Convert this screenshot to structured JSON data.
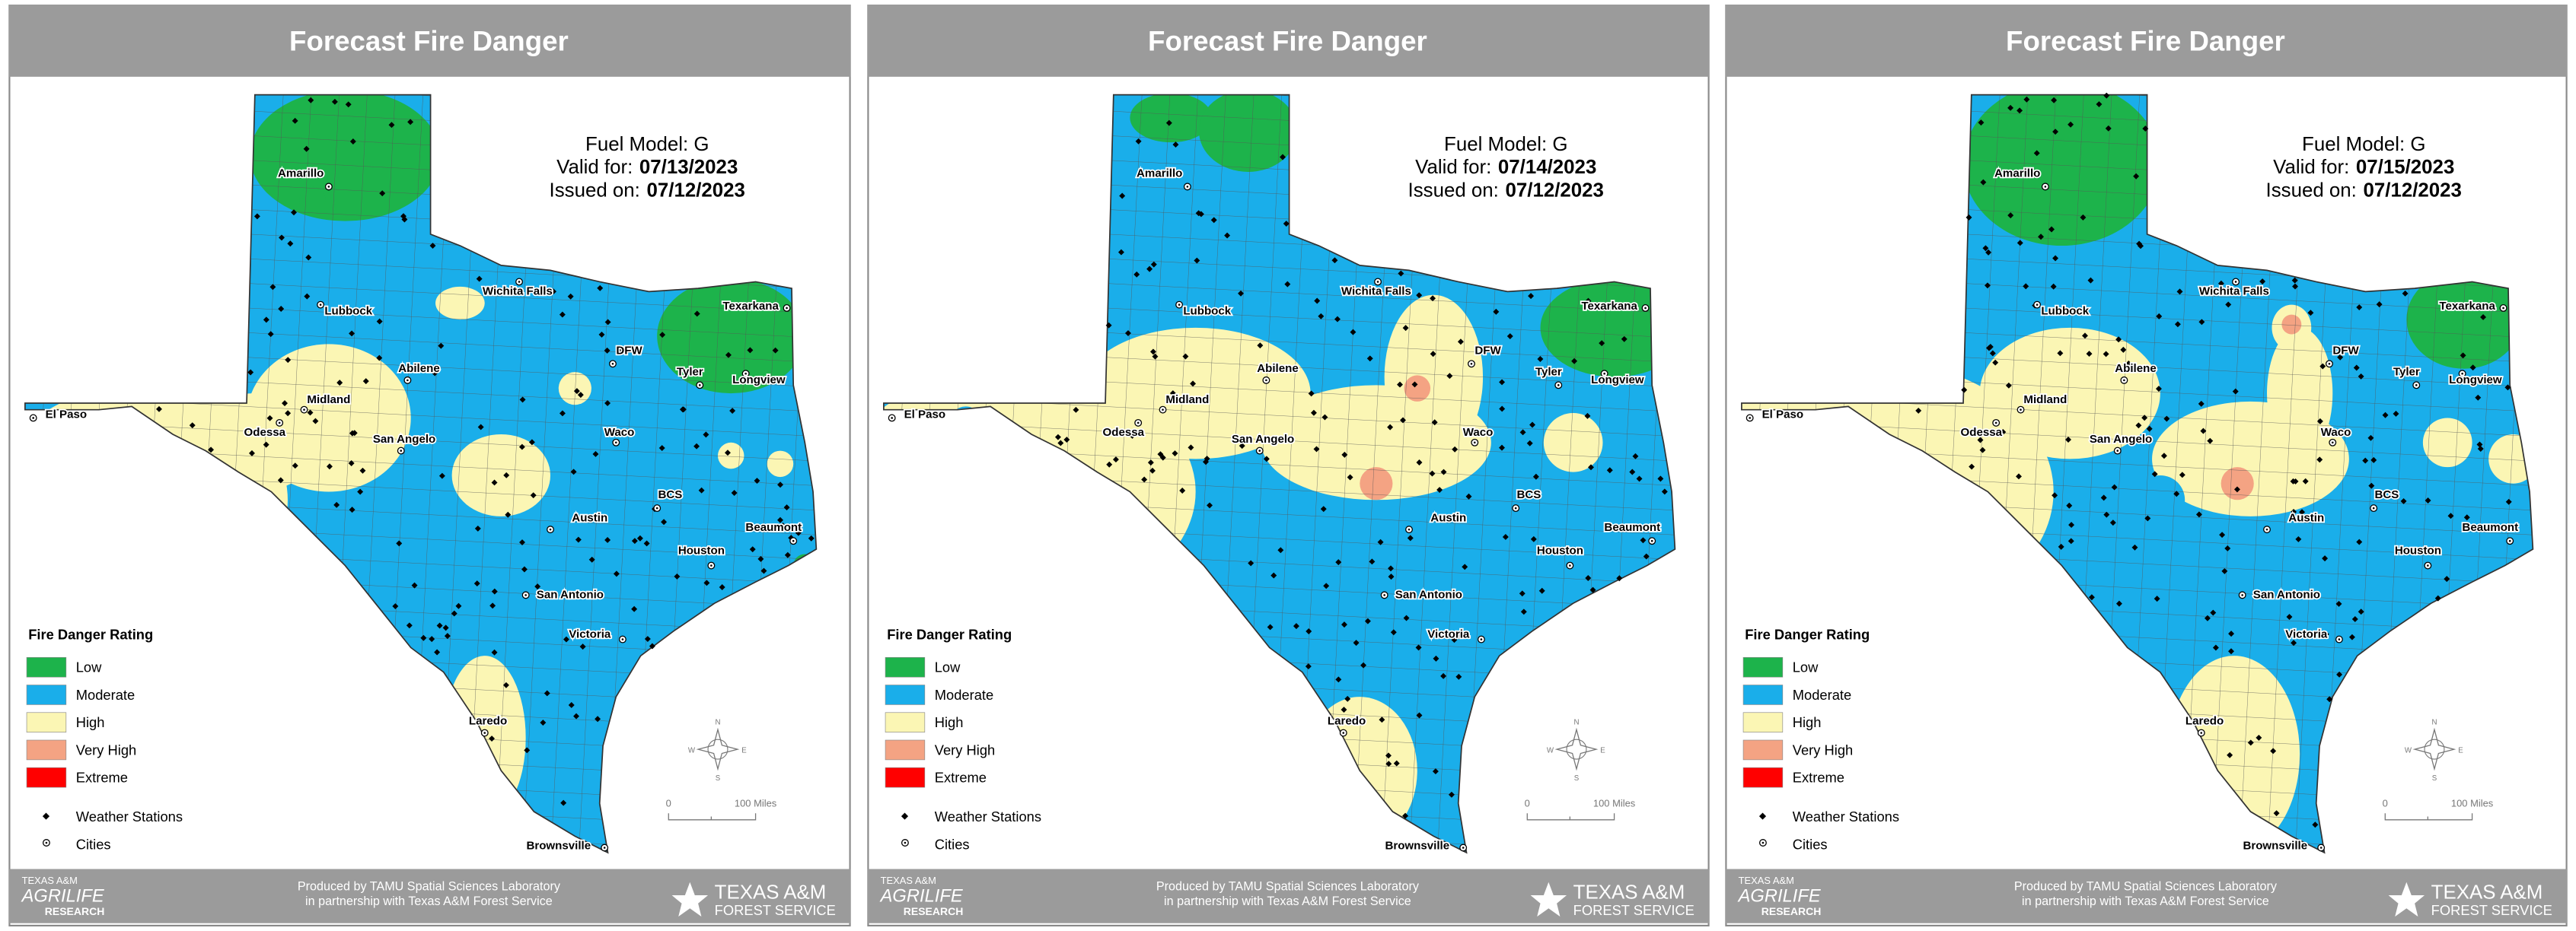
{
  "panels": [
    {
      "title": "Forecast Fire Danger",
      "fuel_model": "Fuel Model: G",
      "valid_for": {
        "label": "Valid for:",
        "date": "07/13/2023"
      },
      "issued_on": {
        "label": "Issued on:",
        "date": "07/12/2023"
      }
    },
    {
      "title": "Forecast Fire Danger",
      "fuel_model": "Fuel Model: G",
      "valid_for": {
        "label": "Valid for:",
        "date": "07/14/2023"
      },
      "issued_on": {
        "label": "Issued on:",
        "date": "07/12/2023"
      }
    },
    {
      "title": "Forecast Fire Danger",
      "fuel_model": "Fuel Model: G",
      "valid_for": {
        "label": "Valid for:",
        "date": "07/15/2023"
      },
      "issued_on": {
        "label": "Issued on:",
        "date": "07/12/2023"
      }
    }
  ],
  "legend": {
    "title": "Fire Danger Rating",
    "items": [
      {
        "label": "Low",
        "color": "#1db34b"
      },
      {
        "label": "Moderate",
        "color": "#1aaeea"
      },
      {
        "label": "High",
        "color": "#fbf6b4"
      },
      {
        "label": "Very High",
        "color": "#f4a383"
      },
      {
        "label": "Extreme",
        "color": "#ff0000"
      }
    ],
    "symbols": [
      "Weather Stations",
      "Cities"
    ]
  },
  "cities": [
    "Amarillo",
    "Lubbock",
    "Wichita Falls",
    "Texarkana",
    "Abilene",
    "DFW",
    "Tyler",
    "Longview",
    "El Paso",
    "Midland",
    "Odessa",
    "San Angelo",
    "Waco",
    "BCS",
    "Austin",
    "Beaumont",
    "Houston",
    "San Antonio",
    "Victoria",
    "Laredo",
    "Brownsville"
  ],
  "scale_bar": {
    "start": "0",
    "end": "100 Miles"
  },
  "compass": {
    "n": "N",
    "s": "S",
    "e": "E",
    "w": "W"
  },
  "footer": {
    "credit": [
      "Produced by TAMU Spatial Sciences Laboratory",
      "in partnership with Texas A&M Forest Service"
    ],
    "left_logo": [
      "TEXAS A&M",
      "AGRILIFE",
      "RESEARCH"
    ],
    "right_logo": [
      "TEXAS A&M",
      "FOREST SERVICE"
    ]
  }
}
